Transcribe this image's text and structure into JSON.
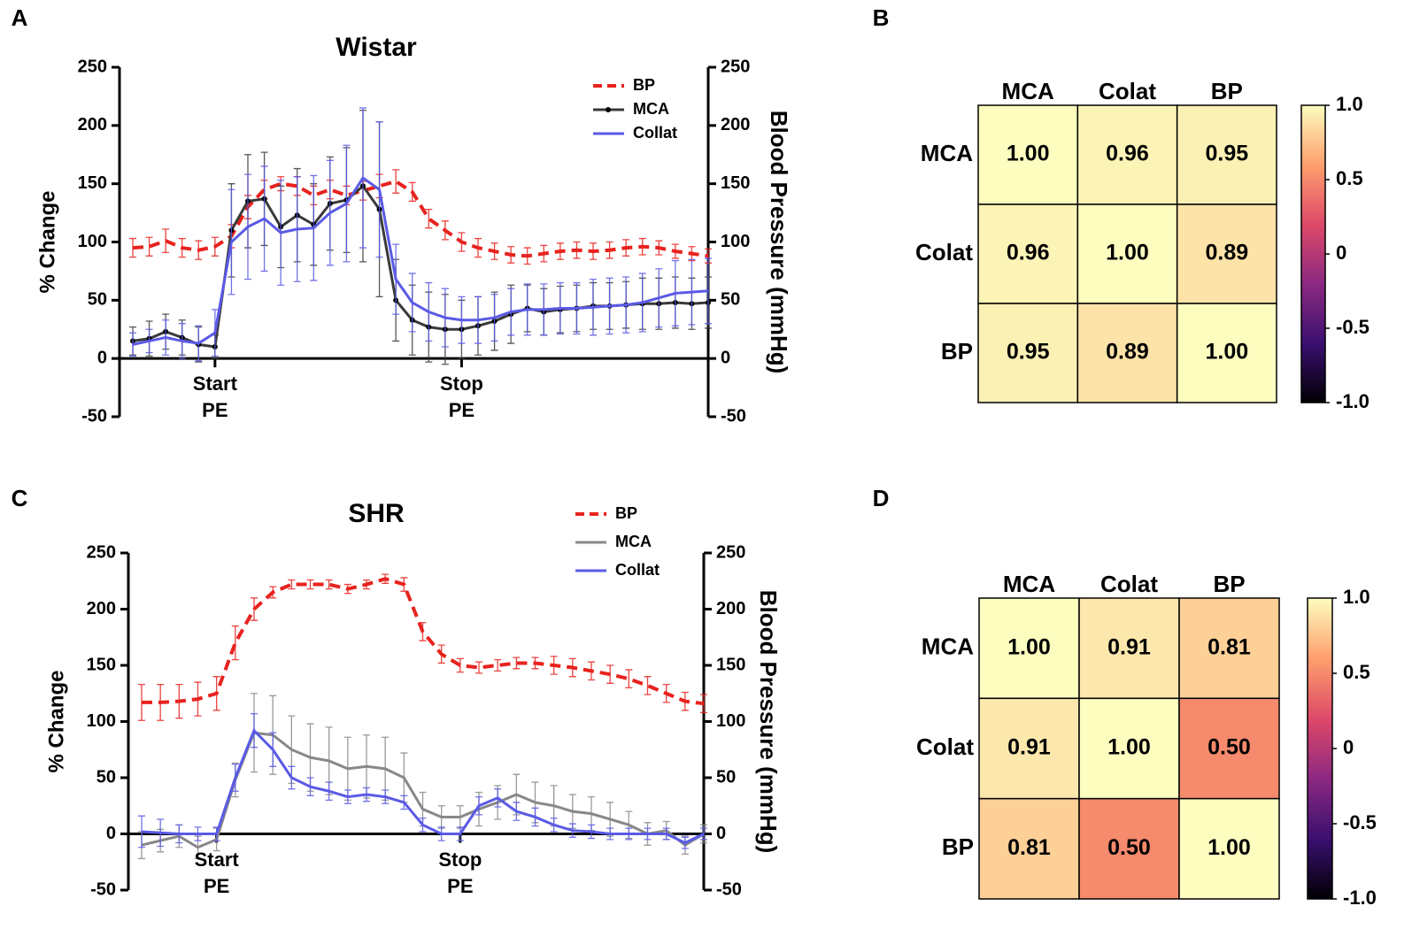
{
  "chart_data": [
    {
      "type": "line",
      "panel": "A",
      "title": "Wistar",
      "ylabel": "% Change",
      "y2label": "Blood Pressure (mmHg)",
      "categories": [
        null,
        null,
        null,
        null,
        null,
        "Start PE",
        null,
        null,
        null,
        null,
        null,
        null,
        null,
        null,
        null,
        null,
        null,
        null,
        null,
        null,
        "Stop PE",
        null,
        null,
        null,
        null,
        null,
        null,
        null,
        null,
        null,
        null,
        null,
        null,
        null,
        null,
        null
      ],
      "ylim": [
        -50,
        250
      ],
      "yticks": [
        -50,
        0,
        50,
        100,
        150,
        200,
        250
      ],
      "y2lim": [
        -50,
        250
      ],
      "y2ticks": [
        -50,
        0,
        50,
        100,
        150,
        200,
        250
      ],
      "series": [
        {
          "name": "BP",
          "color": "#e8221e",
          "dashed": true,
          "axis": "y2",
          "values": [
            95,
            96,
            101,
            95,
            93,
            96,
            105,
            130,
            145,
            150,
            148,
            140,
            145,
            140,
            144,
            148,
            152,
            143,
            120,
            110,
            100,
            95,
            92,
            89,
            88,
            90,
            92,
            93,
            92,
            93,
            95,
            96,
            95,
            92,
            90,
            88
          ],
          "errors": [
            8,
            8,
            10,
            8,
            8,
            8,
            10,
            10,
            8,
            6,
            8,
            8,
            8,
            8,
            8,
            10,
            10,
            8,
            8,
            8,
            8,
            8,
            7,
            7,
            7,
            7,
            7,
            7,
            7,
            7,
            7,
            7,
            6,
            6,
            6,
            6
          ]
        },
        {
          "name": "MCA",
          "color": "#3a3a3a",
          "markers": true,
          "values": [
            15,
            17,
            23,
            18,
            12,
            10,
            110,
            135,
            137,
            113,
            123,
            115,
            133,
            136,
            148,
            128,
            50,
            33,
            27,
            25,
            25,
            28,
            32,
            38,
            43,
            40,
            42,
            43,
            45,
            45,
            46,
            47,
            47,
            48,
            47,
            48
          ],
          "errors": [
            12,
            15,
            15,
            15,
            15,
            10,
            40,
            40,
            40,
            35,
            40,
            35,
            40,
            45,
            65,
            75,
            35,
            30,
            30,
            30,
            25,
            25,
            25,
            25,
            20,
            20,
            20,
            20,
            20,
            20,
            20,
            22,
            22,
            22,
            22,
            22
          ]
        },
        {
          "name": "Collat",
          "color": "#5a5ae6",
          "values": [
            12,
            15,
            18,
            15,
            13,
            22,
            100,
            113,
            120,
            108,
            111,
            112,
            125,
            133,
            155,
            145,
            68,
            48,
            40,
            35,
            33,
            33,
            35,
            40,
            42,
            42,
            43,
            43,
            44,
            45,
            46,
            48,
            52,
            56,
            57,
            58
          ],
          "errors": [
            10,
            10,
            15,
            15,
            15,
            20,
            45,
            45,
            45,
            45,
            45,
            45,
            45,
            50,
            60,
            58,
            30,
            25,
            25,
            25,
            20,
            20,
            20,
            20,
            22,
            22,
            22,
            22,
            24,
            24,
            24,
            25,
            25,
            28,
            28,
            28
          ]
        }
      ]
    },
    {
      "type": "heatmap",
      "panel": "B",
      "rows": [
        "MCA",
        "Colat",
        "BP"
      ],
      "columns": [
        "MCA",
        "Colat",
        "BP"
      ],
      "values": [
        [
          1,
          0.96,
          0.95
        ],
        [
          0.96,
          1,
          0.89
        ],
        [
          0.95,
          0.89,
          1
        ]
      ],
      "value_labels": [
        [
          "1.00",
          "0.96",
          "0.95"
        ],
        [
          "0.96",
          "1.00",
          "0.89"
        ],
        [
          "0.95",
          "0.89",
          "1.00"
        ]
      ],
      "zlim": [
        -1,
        1
      ],
      "zticks": [
        {
          "value": 1,
          "label": "1.0"
        },
        0.5,
        0,
        -0.5,
        {
          "value": -1,
          "label": "-1.0"
        }
      ],
      "colorscale": [
        "#000004",
        "#3b0f70",
        "#8c2981",
        "#de4968",
        "#fe9f6d",
        "#fcfdbf"
      ]
    },
    {
      "type": "line",
      "panel": "C",
      "title": "SHR",
      "ylabel": "% Change",
      "y2label": "Blood Pressure (mmHg)",
      "categories": [
        null,
        null,
        null,
        null,
        "Start PE",
        null,
        null,
        null,
        null,
        null,
        null,
        null,
        null,
        null,
        null,
        null,
        null,
        "Stop PE",
        null,
        null,
        null,
        null,
        null,
        null,
        null,
        null,
        null,
        null,
        null,
        null,
        null
      ],
      "ylim": [
        -50,
        250
      ],
      "yticks": [
        -50,
        0,
        50,
        100,
        150,
        200,
        250
      ],
      "y2lim": [
        -50,
        250
      ],
      "y2ticks": [
        -50,
        0,
        50,
        100,
        150,
        200,
        250
      ],
      "series": [
        {
          "name": "BP",
          "color": "#e8221e",
          "dashed": true,
          "axis": "y2",
          "values": [
            117,
            117,
            118,
            120,
            125,
            170,
            200,
            215,
            222,
            222,
            222,
            218,
            222,
            227,
            222,
            180,
            160,
            150,
            148,
            150,
            152,
            152,
            150,
            148,
            145,
            142,
            138,
            132,
            125,
            118,
            116
          ],
          "errors": [
            16,
            16,
            15,
            15,
            15,
            15,
            10,
            5,
            4,
            4,
            4,
            4,
            4,
            4,
            6,
            8,
            8,
            6,
            5,
            5,
            5,
            5,
            8,
            8,
            8,
            8,
            8,
            8,
            8,
            8,
            8
          ]
        },
        {
          "name": "MCA",
          "color": "#888888",
          "values": [
            -10,
            -6,
            -2,
            -12,
            -5,
            48,
            90,
            88,
            75,
            68,
            65,
            58,
            60,
            58,
            50,
            22,
            15,
            15,
            22,
            28,
            35,
            28,
            25,
            20,
            18,
            13,
            8,
            0,
            3,
            -10,
            0
          ],
          "errors": [
            12,
            10,
            10,
            10,
            10,
            15,
            35,
            35,
            30,
            30,
            30,
            28,
            28,
            28,
            22,
            15,
            10,
            10,
            15,
            15,
            18,
            18,
            18,
            15,
            15,
            15,
            12,
            10,
            8,
            8,
            8
          ]
        },
        {
          "name": "Collat",
          "color": "#5a5ae6",
          "values": [
            2,
            1,
            0,
            0,
            0,
            50,
            92,
            75,
            50,
            42,
            38,
            33,
            35,
            33,
            28,
            8,
            0,
            0,
            25,
            32,
            20,
            15,
            8,
            3,
            2,
            0,
            0,
            0,
            0,
            -8,
            0
          ],
          "errors": [
            14,
            12,
            8,
            6,
            6,
            12,
            15,
            15,
            10,
            8,
            8,
            6,
            6,
            6,
            6,
            6,
            6,
            6,
            8,
            8,
            8,
            8,
            6,
            6,
            6,
            5,
            5,
            5,
            5,
            5,
            5
          ]
        }
      ]
    },
    {
      "type": "heatmap",
      "panel": "D",
      "rows": [
        "MCA",
        "Colat",
        "BP"
      ],
      "columns": [
        "MCA",
        "Colat",
        "BP"
      ],
      "values": [
        [
          1,
          0.91,
          0.81
        ],
        [
          0.91,
          1,
          0.5
        ],
        [
          0.81,
          0.5,
          1
        ]
      ],
      "value_labels": [
        [
          "1.00",
          "0.91",
          "0.81"
        ],
        [
          "0.91",
          "1.00",
          "0.50"
        ],
        [
          "0.81",
          "0.50",
          "1.00"
        ]
      ],
      "zlim": [
        -1,
        1
      ],
      "zticks": [
        {
          "value": 1,
          "label": "1.0"
        },
        0.5,
        0,
        -0.5,
        {
          "value": -1,
          "label": "-1.0"
        }
      ],
      "colorscale": [
        "#000004",
        "#3b0f70",
        "#8c2981",
        "#de4968",
        "#fe9f6d",
        "#fcfdbf"
      ]
    }
  ]
}
